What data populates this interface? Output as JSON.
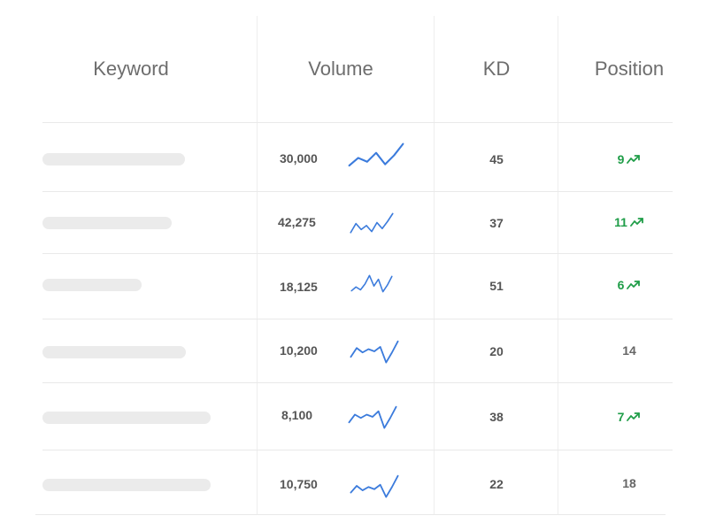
{
  "table": {
    "headers": {
      "keyword": "Keyword",
      "volume": "Volume",
      "kd": "KD",
      "position": "Position"
    },
    "rows": [
      {
        "volume": "30,000",
        "kd": "45",
        "position": "9",
        "trend": "up",
        "icon": "trending-up-icon",
        "sparkline": [
          0.15,
          0.45,
          0.3,
          0.65,
          0.2,
          0.55,
          1.0
        ]
      },
      {
        "volume": "42,275",
        "kd": "37",
        "position": "11",
        "trend": "up",
        "icon": "trending-up-icon",
        "sparkline": [
          0.0,
          0.45,
          0.15,
          0.35,
          0.05,
          0.5,
          0.2,
          0.55,
          0.95
        ]
      },
      {
        "volume": "18,125",
        "kd": "51",
        "position": "6",
        "trend": "up",
        "icon": "trending-up-icon",
        "sparkline": [
          0.15,
          0.35,
          0.2,
          0.5,
          0.95,
          0.4,
          0.75,
          0.1,
          0.45,
          0.9
        ]
      },
      {
        "volume": "10,200",
        "kd": "20",
        "position": "14",
        "trend": "none",
        "icon": "",
        "sparkline": [
          0.25,
          0.65,
          0.45,
          0.6,
          0.5,
          0.7,
          0.0,
          0.45,
          0.95
        ]
      },
      {
        "volume": "8,100",
        "kd": "38",
        "position": "7",
        "trend": "up",
        "icon": "trending-up-icon",
        "sparkline": [
          0.25,
          0.6,
          0.45,
          0.6,
          0.5,
          0.75,
          0.0,
          0.45,
          0.95
        ]
      },
      {
        "volume": "10,750",
        "kd": "22",
        "position": "18",
        "trend": "none",
        "icon": "",
        "sparkline": [
          0.2,
          0.5,
          0.3,
          0.45,
          0.35,
          0.55,
          0.0,
          0.45,
          0.95
        ]
      }
    ]
  },
  "colors": {
    "sparkline": "#3b7bdc",
    "trend_up": "#1f9d48",
    "placeholder": "#ebebeb"
  }
}
